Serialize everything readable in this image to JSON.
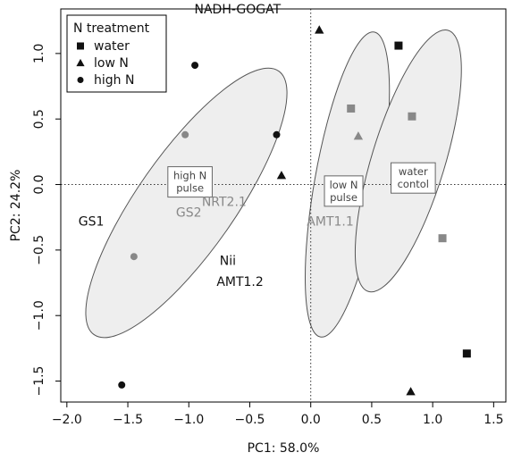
{
  "chart_data": {
    "type": "scatter",
    "title": "",
    "xlabel": "PC1: 58.0%",
    "ylabel": "PC2: 24.2%",
    "xlim": [
      -2.05,
      1.6
    ],
    "ylim": [
      -1.66,
      1.34
    ],
    "x_ticks": [
      -2.0,
      -1.5,
      -1.0,
      -0.5,
      0.0,
      0.5,
      1.0,
      1.5
    ],
    "x_tick_labels": [
      "−2.0",
      "−1.5",
      "−1.0",
      "−0.5",
      "0.0",
      "0.5",
      "1.0",
      "1.5"
    ],
    "y_ticks": [
      1.0,
      0.5,
      0.0,
      -0.5,
      -1.0,
      -1.5
    ],
    "y_tick_labels": [
      "1.0",
      "0.5",
      "0.0",
      "−0.5",
      "−1.0",
      "−1.5"
    ],
    "reference_lines": {
      "x": 0,
      "y": 0,
      "style": "dotted"
    },
    "legend": {
      "title": "N treatment",
      "position": "top-left",
      "entries": [
        {
          "label": "water",
          "marker": "square"
        },
        {
          "label": "low N",
          "marker": "triangle"
        },
        {
          "label": "high N",
          "marker": "circle"
        }
      ]
    },
    "series": [
      {
        "name": "water",
        "marker": "square",
        "points": [
          {
            "x": 0.72,
            "y": 1.06,
            "color": "#111111"
          },
          {
            "x": 0.33,
            "y": 0.58,
            "color": "#888888"
          },
          {
            "x": 0.83,
            "y": 0.52,
            "color": "#888888"
          },
          {
            "x": 1.08,
            "y": -0.41,
            "color": "#888888"
          },
          {
            "x": 1.28,
            "y": -1.29,
            "color": "#111111"
          }
        ]
      },
      {
        "name": "low N",
        "marker": "triangle",
        "points": [
          {
            "x": 0.07,
            "y": 1.18,
            "color": "#111111"
          },
          {
            "x": 0.39,
            "y": 0.37,
            "color": "#888888"
          },
          {
            "x": -0.24,
            "y": 0.07,
            "color": "#111111"
          },
          {
            "x": 0.82,
            "y": -1.58,
            "color": "#111111"
          }
        ]
      },
      {
        "name": "high N",
        "marker": "circle",
        "points": [
          {
            "x": -0.95,
            "y": 0.91,
            "color": "#111111"
          },
          {
            "x": -1.03,
            "y": 0.38,
            "color": "#888888"
          },
          {
            "x": -0.28,
            "y": 0.38,
            "color": "#111111"
          },
          {
            "x": -1.45,
            "y": -0.55,
            "color": "#888888"
          },
          {
            "x": -1.55,
            "y": -1.53,
            "color": "#111111"
          }
        ]
      }
    ],
    "ellipses": [
      {
        "name": "high N pulse",
        "cx": -1.02,
        "cy": -0.14,
        "rx": 1.32,
        "ry": 0.4,
        "angle_deg": 55
      },
      {
        "name": "low N pulse",
        "cx": 0.3,
        "cy": 0.0,
        "rx": 1.27,
        "ry": 0.27,
        "angle_deg": 80
      },
      {
        "name": "water contol",
        "cx": 0.8,
        "cy": 0.18,
        "rx": 1.12,
        "ry": 0.3,
        "angle_deg": 73
      }
    ],
    "group_labels": [
      {
        "text": "high N\npulse",
        "x": -0.99,
        "y": 0.02
      },
      {
        "text": "low N\npulse",
        "x": 0.27,
        "y": -0.05
      },
      {
        "text": "water\ncontol",
        "x": 0.84,
        "y": 0.05
      }
    ],
    "annotations": [
      {
        "text": "NADH-GOGAT",
        "x": -0.6,
        "y": 1.34,
        "color": "#111111"
      },
      {
        "text": "GS1",
        "x": -1.8,
        "y": -0.28,
        "color": "#111111"
      },
      {
        "text": "GS2",
        "x": -1.0,
        "y": -0.21,
        "color": "#888888"
      },
      {
        "text": "NRT2.1",
        "x": -0.71,
        "y": -0.13,
        "color": "#888888"
      },
      {
        "text": "AMT1.1",
        "x": 0.16,
        "y": -0.28,
        "color": "#888888"
      },
      {
        "text": "Nii",
        "x": -0.68,
        "y": -0.58,
        "color": "#111111"
      },
      {
        "text": "AMT1.2",
        "x": -0.58,
        "y": -0.74,
        "color": "#111111"
      }
    ]
  }
}
